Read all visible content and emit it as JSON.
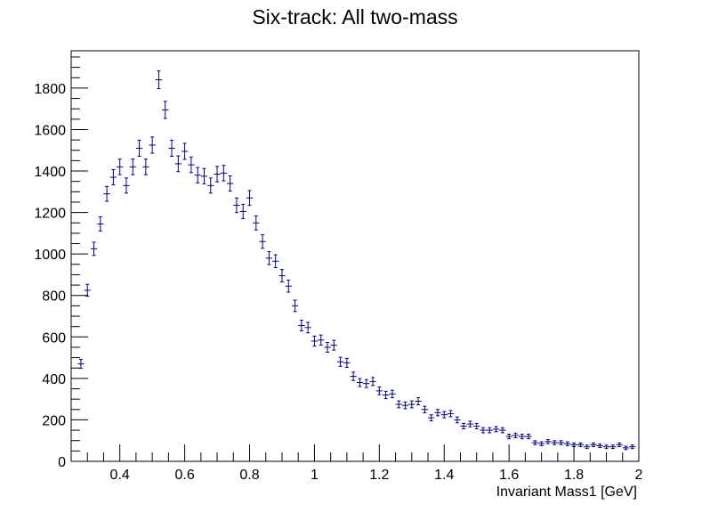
{
  "chart_data": {
    "type": "scatter",
    "title": "Six-track: All two-mass",
    "xlabel": "Invariant Mass1 [GeV]",
    "ylabel": "",
    "xlim": [
      0.25,
      2.0
    ],
    "ylim": [
      0,
      1980
    ],
    "grid": false,
    "legend": "none",
    "x_ticks": [
      0.4,
      0.6,
      0.8,
      1,
      1.2,
      1.4,
      1.6,
      1.8,
      2
    ],
    "y_ticks": [
      0,
      200,
      400,
      600,
      800,
      1000,
      1200,
      1400,
      1600,
      1800
    ],
    "bin_width": 0.02,
    "marker_color": "#000080",
    "series": [
      {
        "x": [
          0.28,
          0.3,
          0.32,
          0.34,
          0.36,
          0.38,
          0.4,
          0.42,
          0.44,
          0.46,
          0.48,
          0.5,
          0.52,
          0.54,
          0.56,
          0.58,
          0.6,
          0.62,
          0.64,
          0.66,
          0.68,
          0.7,
          0.72,
          0.74,
          0.76,
          0.78,
          0.8,
          0.82,
          0.84,
          0.86,
          0.88,
          0.9,
          0.92,
          0.94,
          0.96,
          0.98,
          1.0,
          1.02,
          1.04,
          1.06,
          1.08,
          1.1,
          1.12,
          1.14,
          1.16,
          1.18,
          1.2,
          1.22,
          1.24,
          1.26,
          1.28,
          1.3,
          1.32,
          1.34,
          1.36,
          1.38,
          1.4,
          1.42,
          1.44,
          1.46,
          1.48,
          1.5,
          1.52,
          1.54,
          1.56,
          1.58,
          1.6,
          1.62,
          1.64,
          1.66,
          1.68,
          1.7,
          1.72,
          1.74,
          1.76,
          1.78,
          1.8,
          1.82,
          1.84,
          1.86,
          1.88,
          1.9,
          1.92,
          1.94,
          1.96,
          1.98
        ],
        "y": [
          470,
          825,
          1025,
          1145,
          1290,
          1370,
          1420,
          1330,
          1420,
          1510,
          1420,
          1525,
          1840,
          1695,
          1510,
          1435,
          1495,
          1430,
          1380,
          1375,
          1330,
          1385,
          1390,
          1340,
          1235,
          1205,
          1270,
          1150,
          1060,
          980,
          965,
          895,
          845,
          750,
          655,
          645,
          580,
          585,
          550,
          560,
          480,
          475,
          410,
          380,
          375,
          385,
          340,
          320,
          325,
          275,
          270,
          275,
          290,
          250,
          210,
          235,
          225,
          230,
          200,
          170,
          180,
          170,
          150,
          150,
          155,
          150,
          120,
          125,
          120,
          120,
          90,
          85,
          95,
          90,
          90,
          85,
          80,
          80,
          70,
          80,
          75,
          70,
          70,
          80,
          65,
          70
        ]
      }
    ]
  }
}
